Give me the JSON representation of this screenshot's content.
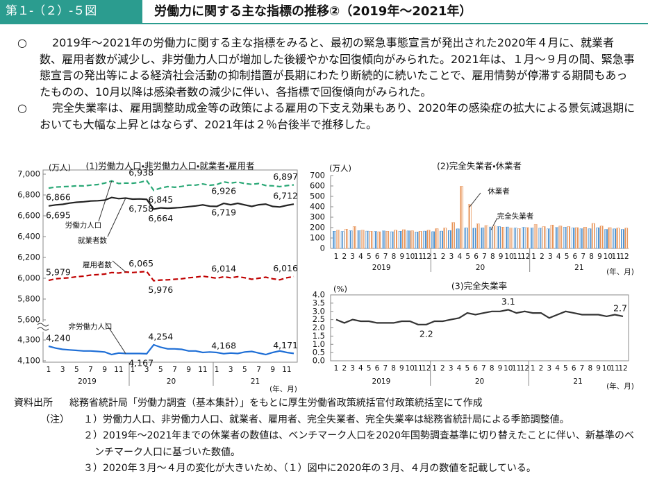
{
  "header": {
    "figure_number": "第１-（２）-５図",
    "title": "労働力に関する主な指標の推移②（2019年～2021年）"
  },
  "paragraphs": [
    {
      "bullet": "○",
      "text": "2019年～2021年の労働力に関する主な指標をみると、最初の緊急事態宣言が発出された2020年４月に、就業者数、雇用者数が減少し、非労働力人口が増加した後緩やかな回復傾向がみられた。2021年は、１月～９月の間、緊急事態宣言の発出等による経済社会活動の抑制措置が長期にわたり断続的に続いたことで、雇用情勢が停滞する期間もあったものの、10月以降は感染者数の減少に伴い、各指標で回復傾向がみられた。"
    },
    {
      "bullet": "○",
      "text": "完全失業率は、雇用調整助成金等の政策による雇用の下支え効果もあり、2020年の感染症の拡大による景気減退期においても大幅な上昇とはならず、2021年は２％台後半で推移した。"
    }
  ],
  "chart_data": [
    {
      "type": "line",
      "title": "(1)労働力人口・非労働力人口・就業者・雇用者",
      "y_unit": "(万人)",
      "ylim": [
        5600,
        7000
      ],
      "yticks": [
        {
          "value": 5600,
          "label": "5,600"
        },
        {
          "value": 5800,
          "label": "5,800"
        },
        {
          "value": 6000,
          "label": "6,000"
        },
        {
          "value": 6200,
          "label": "6,200"
        },
        {
          "value": 6400,
          "label": "6,400"
        },
        {
          "value": 6600,
          "label": "6,600"
        },
        {
          "value": 6800,
          "label": "6,800"
        },
        {
          "value": 7000,
          "label": "7,000"
        }
      ],
      "series": [
        {
          "name": "労働力人口",
          "color": "#2aa876",
          "linestyle": "dashed",
          "values": [
            6866,
            6876,
            6879,
            6882,
            6888,
            6887,
            6895,
            6900,
            6914,
            6935,
            6910,
            6915,
            6913,
            6921,
            6938,
            6845,
            6866,
            6881,
            6874,
            6882,
            6895,
            6895,
            6906,
            6893,
            6900,
            6926,
            6915,
            6924,
            6910,
            6902,
            6910,
            6891,
            6888,
            6880,
            6890,
            6897
          ],
          "value_labels": [
            "6,866",
            null,
            null,
            null,
            null,
            null,
            null,
            null,
            null,
            null,
            null,
            null,
            null,
            null,
            "6,938",
            "6,845",
            null,
            null,
            null,
            null,
            null,
            null,
            null,
            null,
            null,
            "6,926",
            null,
            null,
            null,
            null,
            null,
            null,
            null,
            null,
            null,
            "6,897"
          ]
        },
        {
          "name": "就業者数",
          "color": "#222222",
          "linestyle": "solid",
          "values": [
            6695,
            6705,
            6710,
            6722,
            6730,
            6735,
            6742,
            6745,
            6750,
            6776,
            6765,
            6770,
            6760,
            6762,
            6758,
            6664,
            6676,
            6672,
            6676,
            6680,
            6688,
            6695,
            6705,
            6692,
            6690,
            6719,
            6706,
            6720,
            6705,
            6690,
            6706,
            6712,
            6690,
            6685,
            6700,
            6712
          ],
          "value_labels": [
            "6,695",
            null,
            null,
            null,
            null,
            null,
            null,
            null,
            null,
            null,
            null,
            null,
            null,
            null,
            "6,758",
            "6,664",
            null,
            null,
            null,
            null,
            null,
            null,
            null,
            null,
            null,
            "6,719",
            null,
            null,
            null,
            null,
            null,
            null,
            null,
            null,
            null,
            "6,712"
          ]
        },
        {
          "name": "雇用者数",
          "color": "#c00000",
          "linestyle": "dashed",
          "values": [
            5979,
            5995,
            6000,
            6005,
            6015,
            6020,
            6030,
            6035,
            6040,
            6055,
            6050,
            6060,
            6055,
            6060,
            6065,
            5976,
            5983,
            5985,
            5990,
            5995,
            6005,
            6010,
            6020,
            6010,
            6000,
            6014,
            6005,
            6015,
            6005,
            5990,
            6000,
            6010,
            5995,
            5985,
            6005,
            6016
          ],
          "value_labels": [
            "5,979",
            null,
            null,
            null,
            null,
            null,
            null,
            null,
            null,
            null,
            null,
            null,
            null,
            null,
            "6,065",
            "5,976",
            null,
            null,
            null,
            null,
            null,
            null,
            null,
            null,
            null,
            "6,014",
            null,
            null,
            null,
            null,
            null,
            null,
            null,
            null,
            null,
            "6,016"
          ]
        }
      ]
    },
    {
      "type": "line",
      "ylim": [
        4100,
        4300
      ],
      "yticks": [
        {
          "value": 4100,
          "label": "4,100"
        },
        {
          "value": 4300,
          "label": "4,300"
        }
      ],
      "categories": [
        "1",
        null,
        "3",
        null,
        "5",
        null,
        "7",
        null,
        "9",
        null,
        "11",
        null,
        "1",
        null,
        "3",
        null,
        "5",
        null,
        "7",
        null,
        "9",
        null,
        "11",
        null,
        "1",
        null,
        "3",
        null,
        "5",
        null,
        "7",
        null,
        "9",
        null,
        "11",
        null
      ],
      "x_groups": [
        "2019",
        "20",
        "21"
      ],
      "x_unit": "(年、月)",
      "series": [
        {
          "name": "非労働力人口",
          "color": "#1f6fd6",
          "linestyle": "solid",
          "values": [
            4240,
            4222,
            4210,
            4205,
            4200,
            4195,
            4195,
            4190,
            4185,
            4160,
            4175,
            4170,
            4170,
            4170,
            4167,
            4254,
            4230,
            4215,
            4215,
            4210,
            4195,
            4195,
            4180,
            4185,
            4180,
            4168,
            4175,
            4170,
            4185,
            4190,
            4175,
            4160,
            4180,
            4195,
            4180,
            4171
          ],
          "value_labels": [
            "4,240",
            null,
            null,
            null,
            null,
            null,
            null,
            null,
            null,
            null,
            null,
            null,
            null,
            null,
            "4,167",
            "4,254",
            null,
            null,
            null,
            null,
            null,
            null,
            null,
            null,
            null,
            "4,168",
            null,
            null,
            null,
            null,
            null,
            null,
            null,
            null,
            null,
            "4,171"
          ]
        }
      ]
    },
    {
      "type": "bar",
      "title": "(2)完全失業者・休業者",
      "y_unit": "(万人)",
      "ylim": [
        0,
        700
      ],
      "yticks": [
        0,
        100,
        200,
        300,
        400,
        500,
        600,
        700
      ],
      "categories": [
        "1",
        "2",
        "3",
        "4",
        "5",
        "6",
        "7",
        "8",
        "9",
        "10",
        "11",
        "12",
        "1",
        "2",
        "3",
        "4",
        "5",
        "6",
        "7",
        "8",
        "9",
        "10",
        "11",
        "12",
        "1",
        "2",
        "3",
        "4",
        "5",
        "6",
        "7",
        "8",
        "9",
        "10",
        "11",
        "12"
      ],
      "x_groups": [
        "2019",
        "20",
        "21"
      ],
      "x_unit": "(年、月)",
      "series": [
        {
          "name": "完全失業者",
          "color": "#4a90d0",
          "values": [
            165,
            163,
            170,
            170,
            166,
            163,
            168,
            160,
            165,
            168,
            158,
            166,
            161,
            166,
            172,
            188,
            197,
            194,
            197,
            206,
            210,
            206,
            196,
            203,
            196,
            194,
            188,
            201,
            204,
            197,
            189,
            189,
            199,
            183,
            188,
            183
          ]
        },
        {
          "name": "休業者",
          "color": "#e8955a",
          "values": [
            175,
            185,
            210,
            175,
            165,
            160,
            165,
            175,
            180,
            170,
            165,
            175,
            190,
            196,
            249,
            597,
            423,
            236,
            220,
            215,
            205,
            195,
            190,
            200,
            230,
            210,
            225,
            215,
            210,
            200,
            205,
            240,
            215,
            200,
            195,
            195
          ]
        }
      ]
    },
    {
      "type": "line",
      "title": "(3)完全失業率",
      "y_unit": "(%)",
      "ylim": [
        0,
        4
      ],
      "yticks": [
        {
          "value": 0,
          "label": "0.0"
        },
        0.5,
        {
          "value": 1,
          "label": "1.0"
        },
        1.5,
        {
          "value": 2,
          "label": "2.0"
        },
        2.5,
        {
          "value": 3,
          "label": "3.0"
        },
        3.5,
        {
          "value": 4,
          "label": "4.0"
        }
      ],
      "categories": [
        "1",
        "2",
        "3",
        "4",
        "5",
        "6",
        "7",
        "8",
        "9",
        "10",
        "11",
        "12",
        "1",
        "2",
        "3",
        "4",
        "5",
        "6",
        "7",
        "8",
        "9",
        "10",
        "11",
        "12",
        "1",
        "2",
        "3",
        "4",
        "5",
        "6",
        "7",
        "8",
        "9",
        "10",
        "11",
        "12"
      ],
      "x_groups": [
        "2019",
        "20",
        "21"
      ],
      "x_unit": "(年、月)",
      "color": "#333333",
      "values": [
        2.5,
        2.3,
        2.5,
        2.4,
        2.4,
        2.3,
        2.3,
        2.3,
        2.4,
        2.4,
        2.2,
        2.2,
        2.4,
        2.4,
        2.5,
        2.6,
        2.9,
        2.8,
        2.9,
        3.0,
        3.0,
        3.1,
        2.9,
        3.0,
        2.9,
        2.9,
        2.6,
        2.8,
        3.0,
        2.9,
        2.8,
        2.8,
        2.8,
        2.7,
        2.8,
        2.7
      ],
      "value_labels": [
        null,
        null,
        null,
        null,
        null,
        null,
        null,
        null,
        null,
        null,
        null,
        "2.2",
        null,
        null,
        null,
        null,
        null,
        null,
        null,
        null,
        null,
        "3.1",
        null,
        null,
        null,
        null,
        null,
        null,
        null,
        null,
        null,
        null,
        null,
        null,
        null,
        "2.7"
      ]
    }
  ],
  "source": {
    "label": "資料出所",
    "text": "総務省統計局「労働力調査（基本集計）」をもとに厚生労働省政策統括官付政策統括室にて作成"
  },
  "notes": {
    "label": "（注）",
    "items": [
      "１）労働力人口、非労働力人口、就業者、雇用者、完全失業者、完全失業率は総務省統計局による季節調整値。",
      "２）2019年～2021年までの休業者の数値は、ベンチマーク人口を2020年国勢調査基準に切り替えたことに伴い、新基準のベンチマーク人口に基づいた数値。",
      "３）2020年３月～４月の変化が大きいため、（１）図中に2020年の３月、４月の数値を記載している。"
    ]
  }
}
